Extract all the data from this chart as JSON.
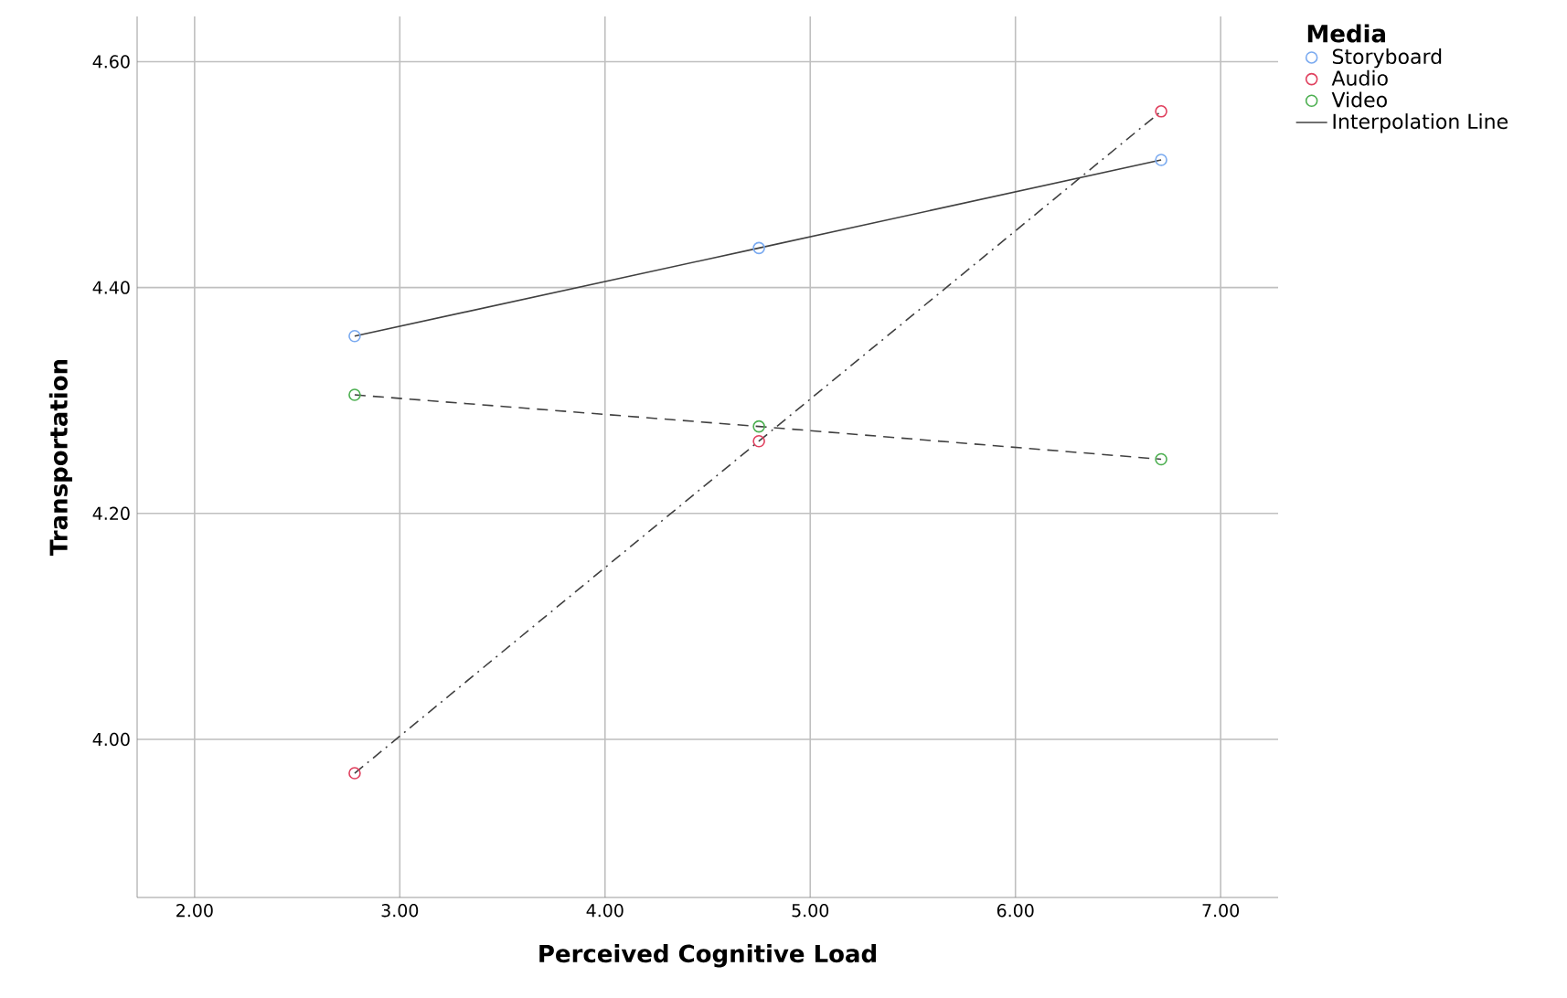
{
  "chart_data": {
    "type": "scatter",
    "xlabel": "Perceived Cognitive Load",
    "ylabel": "Transportation",
    "legend_title": "Media",
    "xlim": [
      1.72,
      7.28
    ],
    "ylim": [
      3.86,
      4.64
    ],
    "xticks": [
      {
        "value": 2,
        "label": "2.00"
      },
      {
        "value": 3,
        "label": "3.00"
      },
      {
        "value": 4,
        "label": "4.00"
      },
      {
        "value": 5,
        "label": "5.00"
      },
      {
        "value": 6,
        "label": "6.00"
      },
      {
        "value": 7,
        "label": "7.00"
      }
    ],
    "yticks": [
      {
        "value": 4.0,
        "label": "4.00"
      },
      {
        "value": 4.2,
        "label": "4.20"
      },
      {
        "value": 4.4,
        "label": "4.40"
      },
      {
        "value": 4.6,
        "label": "4.60"
      }
    ],
    "grid": true,
    "legend": "top right",
    "series": [
      {
        "name": "Storyboard",
        "marker": "circle",
        "color": "#7aaaf0",
        "x": [
          2.78,
          4.75,
          6.71
        ],
        "values": [
          4.357,
          4.435,
          4.513
        ]
      },
      {
        "name": "Audio",
        "marker": "circle",
        "color": "#e0405e",
        "x": [
          2.78,
          4.75,
          6.71
        ],
        "values": [
          3.97,
          4.264,
          4.556
        ]
      },
      {
        "name": "Video",
        "marker": "circle",
        "color": "#4caf50",
        "x": [
          2.78,
          4.75,
          6.71
        ],
        "values": [
          4.305,
          4.277,
          4.248
        ]
      },
      {
        "name": "Interpolation Line",
        "type": "line",
        "marker": "none",
        "line_style": "solid",
        "color": "#404040",
        "x": [
          2.78,
          4.75,
          6.71
        ],
        "values": [
          4.357,
          4.435,
          4.513
        ]
      },
      {
        "type": "line",
        "marker": "none",
        "line_style": "dashdot",
        "color": "#404040",
        "x": [
          2.78,
          4.75,
          6.71
        ],
        "values": [
          3.97,
          4.264,
          4.556
        ]
      },
      {
        "type": "line",
        "marker": "none",
        "line_style": "dashed",
        "color": "#404040",
        "x": [
          2.78,
          4.75,
          6.71
        ],
        "values": [
          4.305,
          4.277,
          4.248
        ]
      }
    ]
  }
}
